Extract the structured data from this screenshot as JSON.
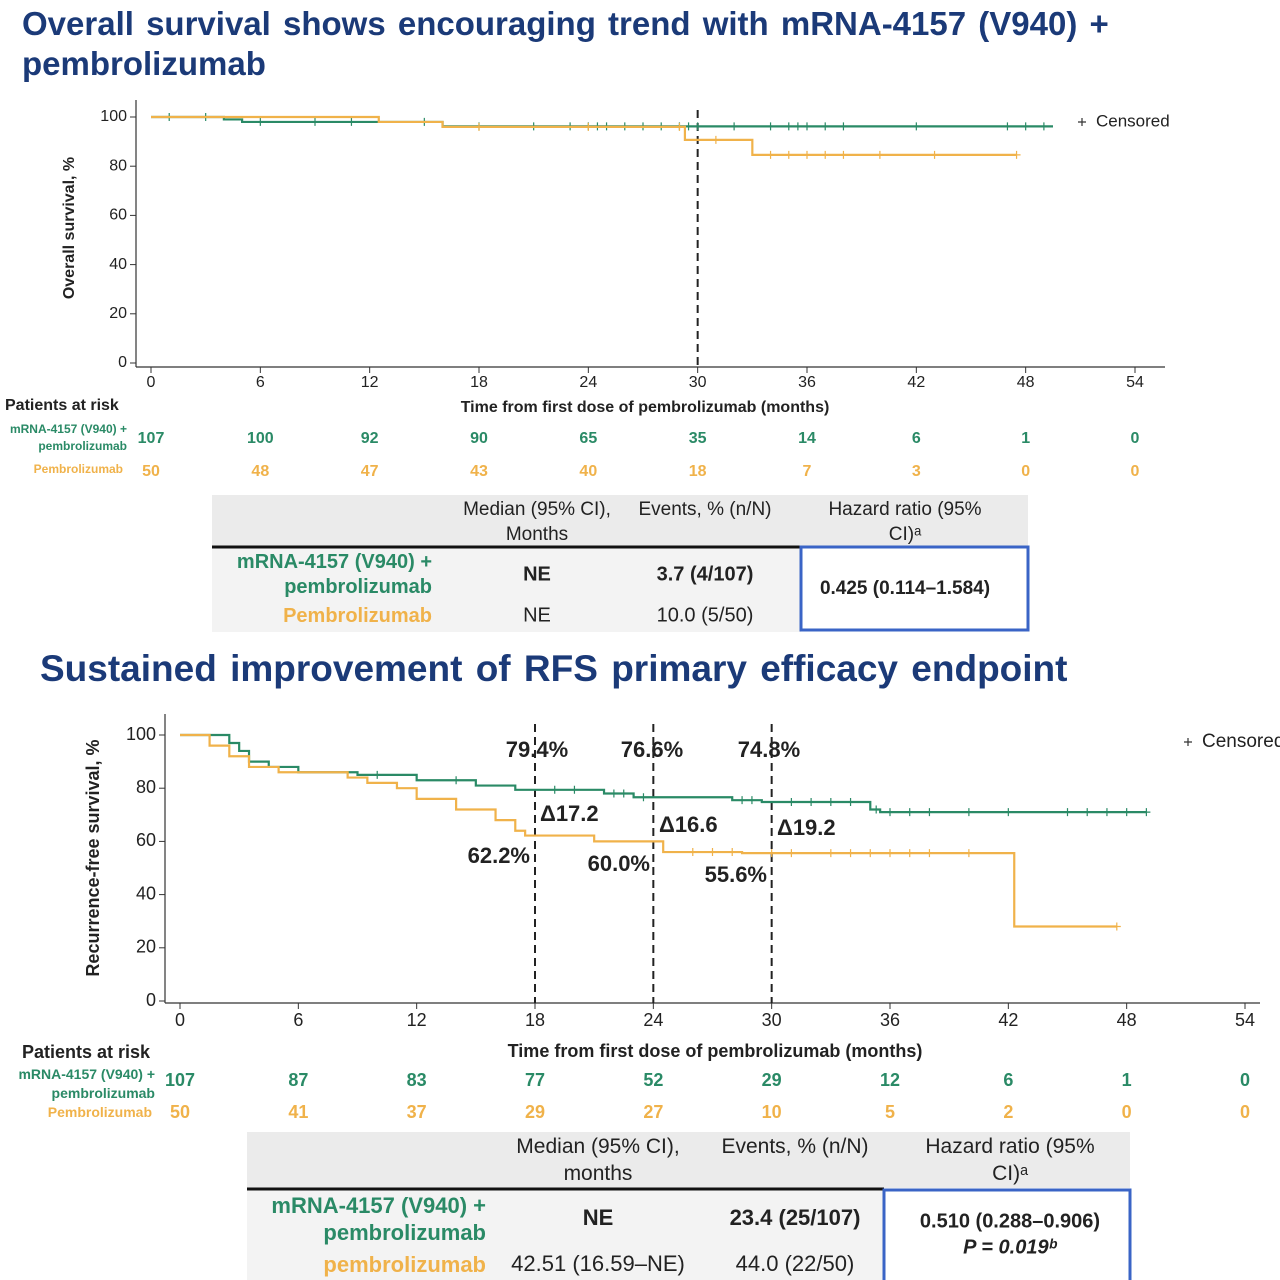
{
  "chart_data": [
    {
      "type": "line",
      "title": "Overall survival shows encouraging trend with mRNA-4157 (V940) + pembrolizumab",
      "xlabel": "Time from first dose of pembrolizumab (months)",
      "ylabel": "Overall survival, %",
      "xlim": [
        0,
        54
      ],
      "ylim": [
        0,
        100
      ],
      "xticks": [
        0,
        6,
        12,
        18,
        24,
        30,
        36,
        42,
        48,
        54
      ],
      "yticks": [
        0,
        20,
        40,
        60,
        80,
        100
      ],
      "censored_label": "Censored",
      "reference_lines": [
        30
      ],
      "series": [
        {
          "name": "mRNA-4157 (V940) + pembrolizumab",
          "color": "#2a8a66",
          "x": [
            0,
            4,
            4,
            5,
            5,
            16,
            16,
            49.5
          ],
          "values": [
            100,
            100,
            99,
            99,
            98,
            98,
            96.2,
            96.2
          ],
          "censored": {
            "x": [
              1,
              3,
              6,
              9,
              11,
              15,
              18,
              21,
              23,
              24,
              24.5,
              25,
              26,
              27,
              28,
              29,
              29.5,
              30,
              32,
              34,
              35,
              35.5,
              36,
              37,
              38,
              42,
              47,
              48,
              49
            ],
            "values": [
              100,
              100,
              98,
              98,
              98,
              98,
              96.2,
              96.2,
              96.2,
              96.2,
              96.2,
              96.2,
              96.2,
              96.2,
              96.2,
              96.2,
              96.2,
              96.2,
              96.2,
              96.2,
              96.2,
              96.2,
              96.2,
              96.2,
              96.2,
              96.2,
              96.2,
              96.2,
              96.2
            ]
          }
        },
        {
          "name": "Pembrolizumab",
          "color": "#f0b24a",
          "x": [
            0,
            12.5,
            12.5,
            16,
            16,
            29.3,
            29.3,
            33,
            33,
            47.5
          ],
          "values": [
            100,
            100,
            98,
            98,
            96,
            96,
            90.7,
            90.7,
            84.6,
            84.6
          ],
          "censored": {
            "x": [
              18,
              24,
              29,
              31,
              34,
              35,
              36,
              37,
              38,
              40,
              43,
              47.5
            ],
            "values": [
              96,
              96,
              96,
              90.7,
              84.6,
              84.6,
              84.6,
              84.6,
              84.6,
              84.6,
              84.6,
              84.6
            ]
          }
        }
      ],
      "risk_table": {
        "title": "Patients at risk",
        "rows": [
          [
            107,
            100,
            92,
            90,
            65,
            35,
            14,
            6,
            1,
            0
          ],
          [
            50,
            48,
            47,
            43,
            40,
            18,
            7,
            3,
            0,
            0
          ]
        ]
      },
      "summary_table": {
        "headers": [
          "Median (95% CI), Months",
          "Events, % (n/N)",
          "Hazard ratio (95% CI)ᵃ"
        ],
        "rows": [
          {
            "label": "mRNA-4157 (V940) + pembrolizumab",
            "median": "NE",
            "events": "3.7 (4/107)"
          },
          {
            "label": "Pembrolizumab",
            "median": "NE",
            "events": "10.0 (5/50)"
          }
        ],
        "hazard_ratio": [
          "0.425 (0.114–1.584)"
        ]
      }
    },
    {
      "type": "line",
      "title": "Sustained improvement of RFS primary efficacy endpoint",
      "xlabel": "Time from first dose of pembrolizumab (months)",
      "ylabel": "Recurrence-free survival, %",
      "xlim": [
        0,
        54
      ],
      "ylim": [
        0,
        100
      ],
      "xticks": [
        0,
        6,
        12,
        18,
        24,
        30,
        36,
        42,
        48,
        54
      ],
      "yticks": [
        0,
        20,
        40,
        60,
        80,
        100
      ],
      "censored_label": "Censored",
      "reference_lines": [
        18,
        24,
        30
      ],
      "annotations": [
        "79.4%",
        "76.6%",
        "74.8%",
        "Δ17.2",
        "Δ16.6",
        "Δ19.2",
        "62.2%",
        "60.0%",
        "55.6%"
      ],
      "series": [
        {
          "name": "mRNA-4157 (V940) + pembrolizumab",
          "color": "#2a8a66",
          "x": [
            0,
            2.5,
            2.5,
            3,
            3,
            3.5,
            3.5,
            4.5,
            4.5,
            6,
            6,
            9,
            9,
            12,
            12,
            15,
            15,
            17,
            17,
            21.5,
            21.5,
            23,
            23,
            28,
            28,
            29.5,
            29.5,
            35,
            35,
            35.5,
            35.5,
            49
          ],
          "values": [
            100,
            100,
            97,
            97,
            94,
            94,
            90,
            90,
            88,
            88,
            86,
            86,
            85,
            85,
            83,
            83,
            81,
            81,
            79.4,
            79.4,
            78,
            78,
            76.6,
            76.6,
            75.5,
            75.5,
            74.8,
            74.8,
            72,
            72,
            71,
            71
          ],
          "censored": {
            "x": [
              10,
              14,
              19,
              20,
              22,
              22.5,
              23.5,
              28.5,
              29,
              31,
              32,
              33,
              34,
              35.3,
              36,
              37,
              38,
              40,
              42,
              45,
              46,
              47,
              48,
              49
            ],
            "values": [
              85,
              83,
              79.4,
              79.4,
              78,
              78,
              76.6,
              75.5,
              75.5,
              74.8,
              74.8,
              74.8,
              74.8,
              72,
              71,
              71,
              71,
              71,
              71,
              71,
              71,
              71,
              71,
              71
            ]
          }
        },
        {
          "name": "Pembrolizumab",
          "color": "#f0b24a",
          "x": [
            0,
            1.5,
            1.5,
            2.5,
            2.5,
            3.5,
            3.5,
            5,
            5,
            8.5,
            8.5,
            9.5,
            9.5,
            11,
            11,
            12,
            12,
            14,
            14,
            16,
            16,
            17,
            17,
            17.5,
            17.5,
            21,
            21,
            24.5,
            24.5,
            28.5,
            28.5,
            42.3,
            42.3,
            47.5
          ],
          "values": [
            100,
            100,
            96,
            96,
            92,
            92,
            88,
            88,
            86,
            86,
            84,
            84,
            82,
            82,
            80,
            80,
            76,
            76,
            72,
            72,
            68,
            68,
            64,
            64,
            62.2,
            62.2,
            60,
            60,
            56,
            56,
            55.6,
            55.6,
            28,
            28
          ],
          "censored": {
            "x": [
              26,
              27,
              28,
              30,
              31,
              33,
              34,
              35,
              36,
              37,
              38,
              40,
              47.5
            ],
            "values": [
              56,
              56,
              56,
              55.6,
              55.6,
              55.6,
              55.6,
              55.6,
              55.6,
              55.6,
              55.6,
              55.6,
              28
            ]
          }
        }
      ],
      "risk_table": {
        "title": "Patients at risk",
        "rows": [
          [
            107,
            87,
            83,
            77,
            52,
            29,
            12,
            6,
            1,
            0
          ],
          [
            50,
            41,
            37,
            29,
            27,
            10,
            5,
            2,
            0,
            0
          ]
        ]
      },
      "summary_table": {
        "headers": [
          "Median (95% CI), months",
          "Events, % (n/N)",
          "Hazard ratio (95% CI)ᵃ"
        ],
        "rows": [
          {
            "label": "mRNA-4157 (V940) + pembrolizumab",
            "median": "NE",
            "events": "23.4 (25/107)"
          },
          {
            "label": "pembrolizumab",
            "median": "42.51 (16.59–NE)",
            "events": "44.0 (22/50)"
          }
        ],
        "hazard_ratio": [
          "0.510 (0.288–0.906)",
          "P = 0.019ᵇ"
        ]
      }
    }
  ]
}
